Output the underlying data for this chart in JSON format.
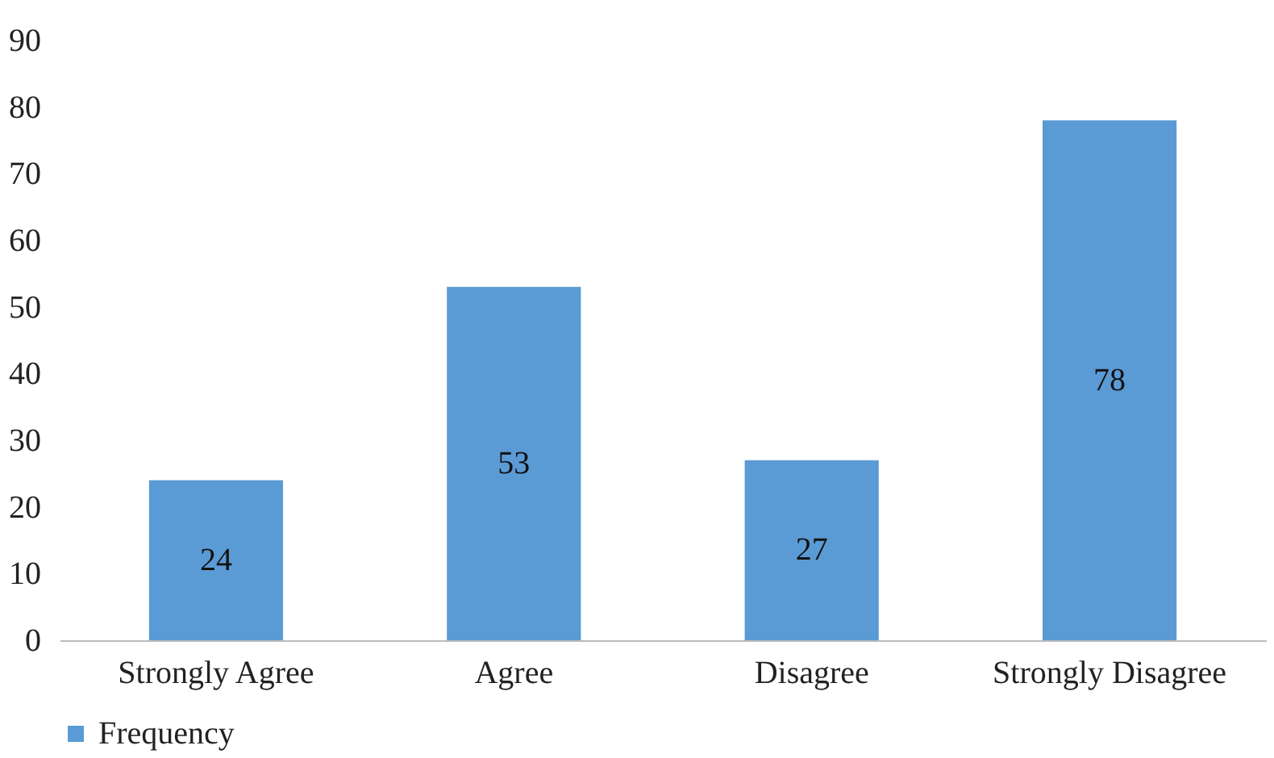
{
  "chart_data": {
    "type": "bar",
    "categories": [
      "Strongly Agree",
      "Agree",
      "Disagree",
      "Strongly Disagree"
    ],
    "series": [
      {
        "name": "Frequency",
        "color": "#5b9bd5",
        "values": [
          24,
          53,
          27,
          78
        ]
      }
    ],
    "ylim": [
      0,
      90
    ],
    "yticks": [
      0,
      10,
      20,
      30,
      40,
      50,
      60,
      70,
      80,
      90
    ],
    "data_labels": true,
    "grid": false,
    "legend": "bottom"
  }
}
